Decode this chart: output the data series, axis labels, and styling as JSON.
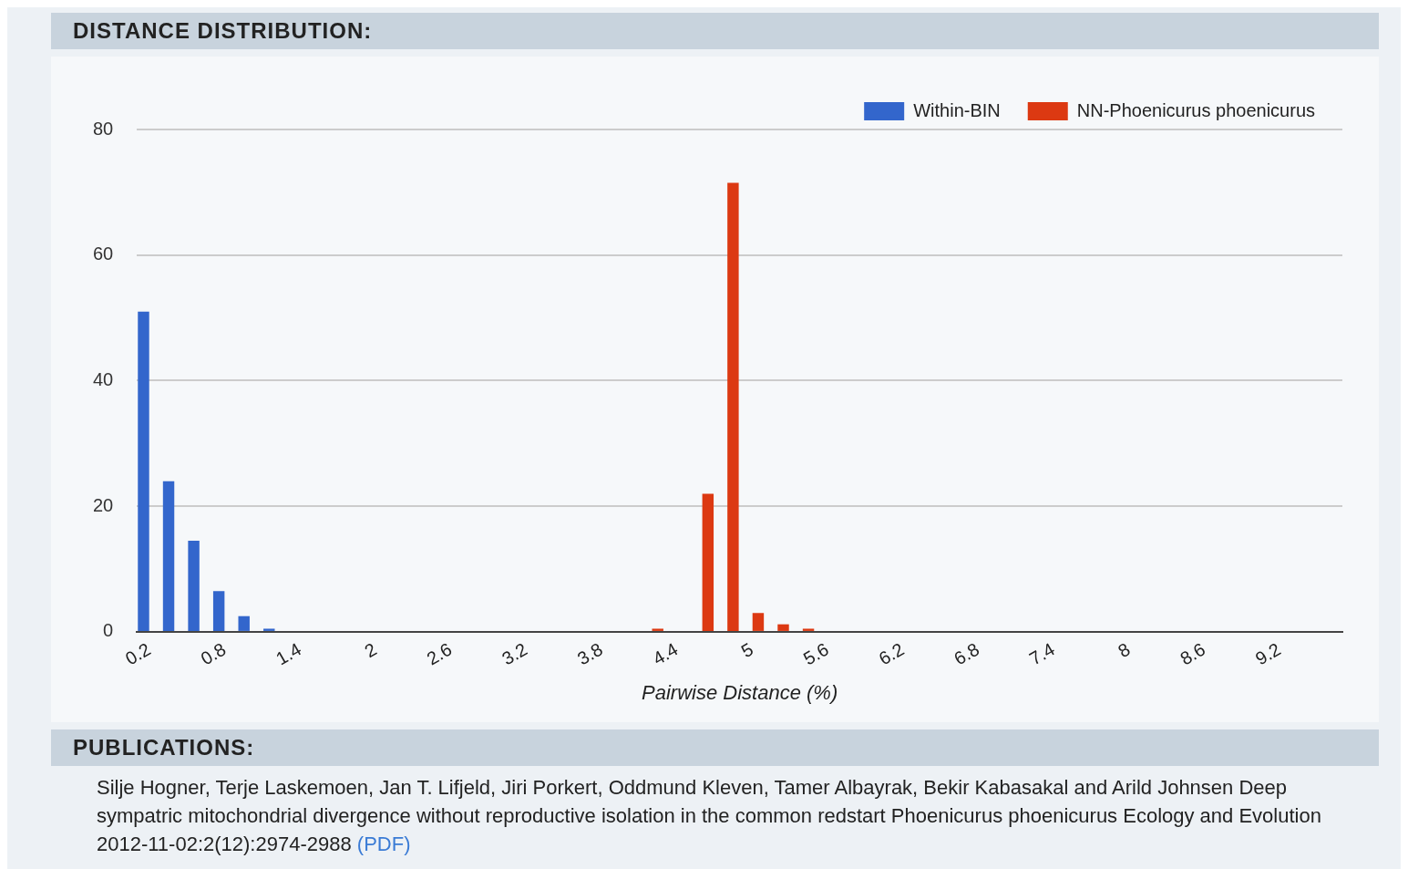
{
  "chart_data": {
    "type": "bar",
    "title": "DISTANCE DISTRIBUTION:",
    "xlabel": "Pairwise Distance (%)",
    "categories": [
      "0.2",
      null,
      null,
      "0.8",
      null,
      null,
      "1.4",
      null,
      null,
      "2",
      null,
      null,
      "2.6",
      null,
      null,
      "3.2",
      null,
      null,
      "3.8",
      null,
      null,
      "4.4",
      null,
      null,
      "5",
      null,
      null,
      "5.6",
      null,
      null,
      "6.2",
      null,
      null,
      "6.8",
      null,
      null,
      "7.4",
      null,
      null,
      "8",
      null,
      null,
      "8.6",
      null,
      null,
      "9.2",
      null,
      null
    ],
    "series": [
      {
        "name": "Within-BIN",
        "color": "#3366cc",
        "values": [
          51,
          24,
          14.5,
          6.5,
          2.5,
          0.5,
          0,
          0,
          0,
          0,
          0,
          0,
          0,
          0,
          0,
          0,
          0,
          0,
          0,
          0,
          0,
          0,
          0,
          0,
          0,
          0,
          0,
          0,
          0,
          0,
          0,
          0,
          0,
          0,
          0,
          0,
          0,
          0,
          0,
          0,
          0,
          0,
          0,
          0,
          0,
          0,
          0,
          0
        ]
      },
      {
        "name": "NN-Phoenicurus phoenicurus",
        "color": "#dc3912",
        "values": [
          0,
          0,
          0,
          0,
          0,
          0,
          0,
          0,
          0,
          0,
          0,
          0,
          0,
          0,
          0,
          0,
          0,
          0,
          0,
          0,
          0.5,
          0,
          22,
          71.5,
          3,
          1.2,
          0.5,
          0,
          0,
          0,
          0,
          0,
          0,
          0,
          0,
          0,
          0,
          0,
          0,
          0,
          0,
          0,
          0,
          0,
          0,
          0,
          0,
          0
        ]
      }
    ],
    "ylim": [
      0,
      80
    ],
    "yticks": [
      0,
      20,
      40,
      60,
      80
    ],
    "grid": "y",
    "legend": "top right",
    "annotations": [
      "PUBLICATIONS:",
      "Silje Hogner, Terje Laskemoen, Jan T. Lifjeld, Jiri Porkert, Oddmund Kleven, Tamer Albayrak, Bekir Kabasakal and Arild Johnsen Deep sympatric mitochondrial divergence without reproductive isolation in the common redstart Phoenicurus phoenicurus Ecology and Evolution 2012-11-02:2(12):2974-2988",
      "(PDF)"
    ]
  }
}
